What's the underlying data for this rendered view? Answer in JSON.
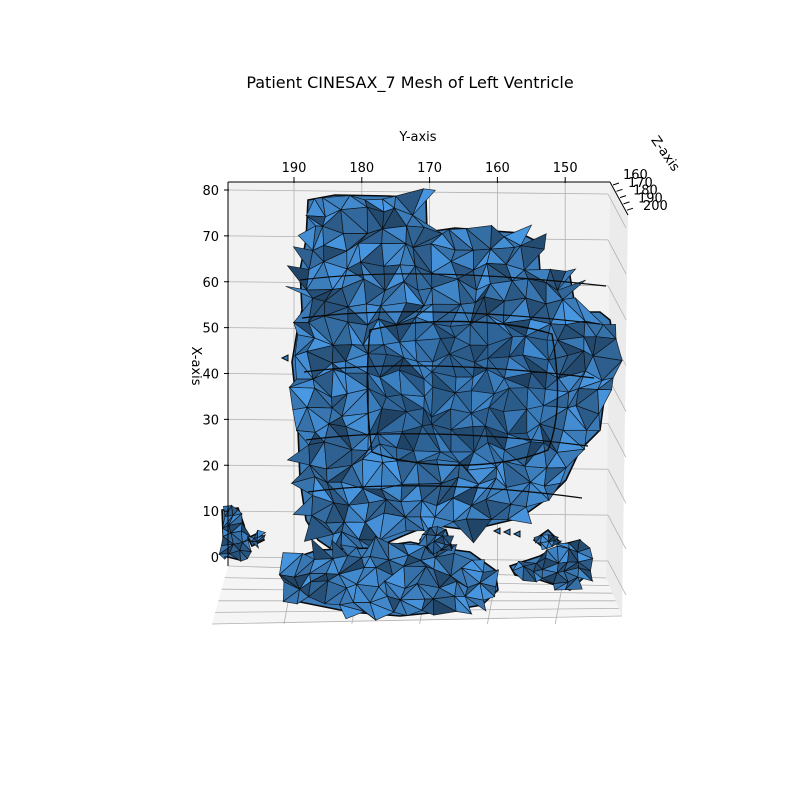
{
  "chart_data": {
    "type": "mesh3d",
    "title": "Patient CINESAX_7 Mesh of Left Ventricle",
    "xlabel": "X-axis",
    "ylabel": "Y-axis",
    "zlabel": "Z-axis",
    "x_ticks": [
      0,
      10,
      20,
      30,
      40,
      50,
      60,
      70,
      80
    ],
    "y_ticks": [
      190,
      180,
      170,
      160,
      150
    ],
    "z_ticks": [
      160,
      170,
      180,
      190,
      200
    ],
    "x_range": [
      -12,
      82
    ],
    "y_range": [
      200,
      144
    ],
    "z_range": [
      155,
      205
    ],
    "grid": true,
    "colors": {
      "face": "#3b7bb8",
      "edge": "#0a0a0a",
      "pane": "#f2f2f2",
      "grid": "#b0b0b0"
    }
  }
}
